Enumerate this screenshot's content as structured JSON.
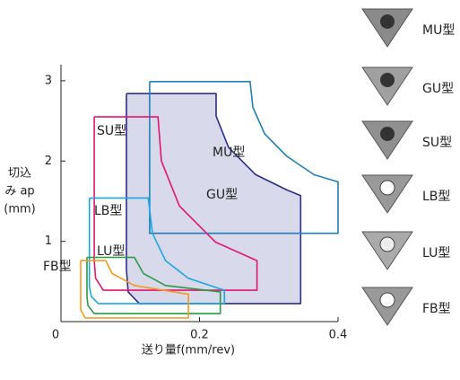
{
  "chart_data": {
    "type": "region",
    "x_label": "送り量f(mm/rev)",
    "y_label": [
      "切込",
      "み ap",
      "(mm)"
    ],
    "xlim": [
      0,
      0.4
    ],
    "ylim": [
      0,
      3.2
    ],
    "xticks": [
      0,
      0.2,
      0.4
    ],
    "yticks": [
      1,
      2,
      3
    ],
    "series": [
      {
        "name": "MU型",
        "color": "#1e7fb8",
        "fill": "none",
        "x": [
          0.128,
          0.273,
          0.277,
          0.294,
          0.326,
          0.365,
          0.4,
          0.4,
          0.128,
          0.128
        ],
        "values": [
          2.99,
          2.99,
          2.67,
          2.34,
          2.06,
          1.83,
          1.74,
          1.1,
          1.1,
          2.99
        ]
      },
      {
        "name": "GU型",
        "color": "#2b2f86",
        "fill": "#d9d9ec",
        "x": [
          0.0945,
          0.224,
          0.224,
          0.242,
          0.281,
          0.326,
          0.346,
          0.346,
          0.113,
          0.097,
          0.0945,
          0.0945
        ],
        "values": [
          2.84,
          2.84,
          2.56,
          2.17,
          1.83,
          1.64,
          1.57,
          0.225,
          0.225,
          0.37,
          0.65,
          2.84
        ]
      },
      {
        "name": "SU型",
        "color": "#e0176f",
        "fill": "none",
        "x": [
          0.048,
          0.14,
          0.145,
          0.171,
          0.223,
          0.283,
          0.283,
          0.061,
          0.05,
          0.048,
          0.048
        ],
        "values": [
          2.55,
          2.55,
          2.0,
          1.44,
          0.99,
          0.76,
          0.39,
          0.39,
          0.54,
          0.76,
          2.55
        ]
      },
      {
        "name": "LB型",
        "color": "#1aa8e0",
        "fill": "none",
        "x": [
          0.041,
          0.126,
          0.132,
          0.151,
          0.184,
          0.236,
          0.236,
          0.054,
          0.044,
          0.041,
          0.041
        ],
        "values": [
          1.54,
          1.54,
          1.1,
          0.76,
          0.54,
          0.39,
          0.225,
          0.225,
          0.31,
          0.43,
          1.54
        ]
      },
      {
        "name": "LU型",
        "color": "#2a9a45",
        "fill": "none",
        "x": [
          0.0375,
          0.106,
          0.119,
          0.151,
          0.23,
          0.23,
          0.048,
          0.039,
          0.0375,
          0.0375
        ],
        "values": [
          0.8,
          0.8,
          0.6,
          0.45,
          0.37,
          0.1,
          0.1,
          0.2,
          0.31,
          0.8
        ]
      },
      {
        "name": "FB型",
        "color": "#f39a1e",
        "fill": "none",
        "x": [
          0.0285,
          0.0647,
          0.0738,
          0.106,
          0.184,
          0.184,
          0.035,
          0.0285,
          0.0285
        ],
        "values": [
          0.76,
          0.76,
          0.6,
          0.45,
          0.34,
          0.045,
          0.045,
          0.146,
          0.76
        ]
      }
    ],
    "inserts": [
      {
        "label": "MU型",
        "color": "#1f3f98"
      },
      {
        "label": "GU型",
        "color": "#2b2f86"
      },
      {
        "label": "SU型",
        "color": "#e0176f"
      },
      {
        "label": "LB型",
        "color": "#1aa8e0"
      },
      {
        "label": "LU型",
        "color": "#2a9a45"
      },
      {
        "label": "FB型",
        "color": "#f39a1e"
      }
    ]
  }
}
